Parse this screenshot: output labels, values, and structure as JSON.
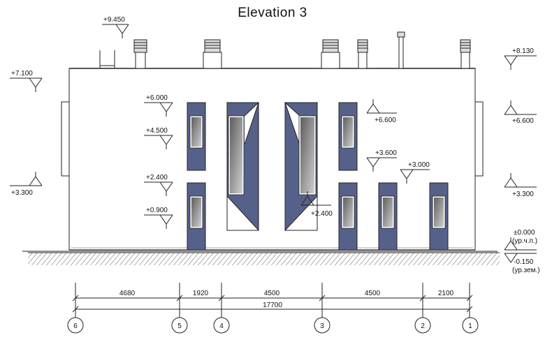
{
  "title": "Elevation 3",
  "colors": {
    "line": "#222222",
    "panel": "#56618a",
    "glass_dark": "#6a6a6a",
    "glass_light": "#c4c4c4",
    "ground_hatch": "#333333"
  },
  "level_marks": {
    "left": [
      {
        "label": "+7.100"
      },
      {
        "label": "+3.300"
      }
    ],
    "right": [
      {
        "label": "+8.130"
      },
      {
        "label": "+6.600"
      },
      {
        "label": "+3.300"
      },
      {
        "label": "±0.000"
      },
      {
        "label": "(ур.ч.п.)"
      },
      {
        "label": "-0.150"
      },
      {
        "label": "(ур.зем.)"
      }
    ],
    "inner": [
      {
        "label": "+9.450"
      },
      {
        "label": "+6.000"
      },
      {
        "label": "+4.500"
      },
      {
        "label": "+2.400"
      },
      {
        "label": "+0.900"
      },
      {
        "label": "+6.600"
      },
      {
        "label": "+3.600"
      },
      {
        "label": "+3.000"
      },
      {
        "label": "+2.400"
      }
    ]
  },
  "dimensions": {
    "segments": [
      "4680",
      "1920",
      "4500",
      "4500",
      "2100"
    ],
    "total": "17700"
  },
  "axes": [
    "6",
    "5",
    "4",
    "3",
    "2",
    "1"
  ]
}
